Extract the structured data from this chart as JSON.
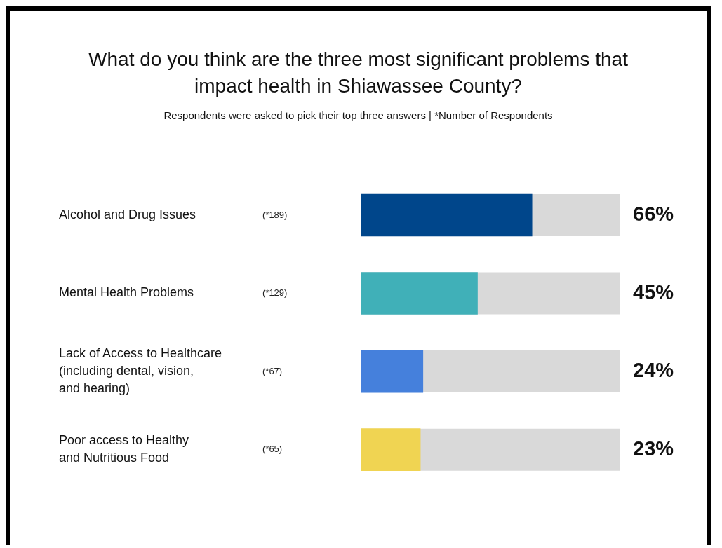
{
  "chart_data": {
    "type": "bar",
    "orientation": "horizontal",
    "title": "What do you think are the three most significant problems that impact health in Shiawassee County?",
    "subtitle": "Respondents were asked to pick their top three answers | *Number of Respondents",
    "categories": [
      "Alcohol and Drug Issues",
      "Mental Health Problems",
      "Lack of Access to Healthcare\n(including dental, vision,\nand hearing)",
      "Poor access to Healthy\nand Nutritious Food"
    ],
    "values": [
      66,
      45,
      24,
      23
    ],
    "colors": [
      "#00468b",
      "#40b0b8",
      "#4580dc",
      "#f0d452"
    ],
    "value_labels": [
      "66%",
      "45%",
      "24%",
      "23%"
    ],
    "xlim": [
      0,
      100
    ],
    "tick_labels": "y",
    "annotations": [
      "(*189)",
      "(*129)",
      "(*67)",
      "(*65)"
    ]
  }
}
